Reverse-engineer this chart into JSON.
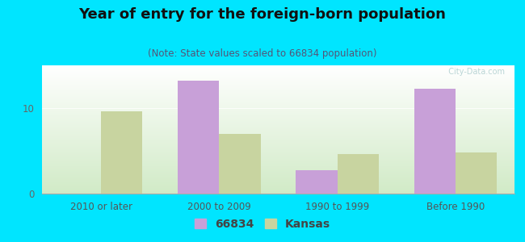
{
  "title": "Year of entry for the foreign-born population",
  "subtitle": "(Note: State values scaled to 66834 population)",
  "categories": [
    "2010 or later",
    "2000 to 2009",
    "1990 to 1999",
    "Before 1990"
  ],
  "values_66834": [
    0,
    13.2,
    2.7,
    12.3
  ],
  "values_kansas": [
    9.6,
    7.0,
    4.6,
    4.8
  ],
  "color_66834": "#c8a0d8",
  "color_kansas": "#c8d4a0",
  "background_outer": "#00e5ff",
  "ylim": [
    0,
    15
  ],
  "yticks": [
    0,
    10
  ],
  "bar_width": 0.35,
  "legend_label_1": "66834",
  "legend_label_2": "Kansas",
  "title_fontsize": 13,
  "subtitle_fontsize": 8.5,
  "tick_fontsize": 8.5,
  "legend_fontsize": 10
}
